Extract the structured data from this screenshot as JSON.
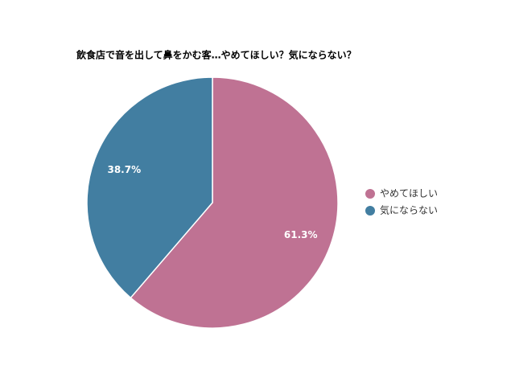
{
  "chart_data": {
    "type": "pie",
    "title": "飲食店で音を出して鼻をかむ客…やめてほしい？気にならない？",
    "categories": [
      "やめてほしい",
      "気にならない"
    ],
    "values": [
      61.3,
      38.7
    ],
    "value_labels": [
      "61.3%",
      "38.7%"
    ],
    "colors": [
      "#bf7293",
      "#427ea1"
    ],
    "legend": "right"
  }
}
